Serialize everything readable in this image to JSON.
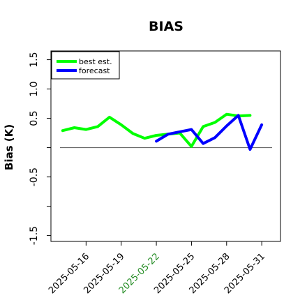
{
  "chart_data": {
    "type": "line",
    "title": "BIAS",
    "xlabel": "",
    "ylabel": "Bias (K)",
    "ylim": [
      -1.6,
      1.65
    ],
    "yticks": [
      -1.5,
      -1.0,
      -0.5,
      0.0,
      0.5,
      1.0,
      1.5
    ],
    "ytick_labels": [
      "-1.5",
      "",
      "-0.5",
      "",
      "0.5",
      "1.0",
      "1.5"
    ],
    "xtick_labels": [
      {
        "label": "2025-05-16",
        "index": 3,
        "color": "#000000"
      },
      {
        "label": "2025-05-19",
        "index": 6,
        "color": "#000000"
      },
      {
        "label": "2025-05-22",
        "index": 9,
        "color": "#228b22"
      },
      {
        "label": "2025-05-25",
        "index": 12,
        "color": "#000000"
      },
      {
        "label": "2025-05-28",
        "index": 15,
        "color": "#000000"
      },
      {
        "label": "2025-05-31",
        "index": 18,
        "color": "#000000"
      }
    ],
    "x_range": [
      0,
      19.6
    ],
    "zero_line": 0,
    "legend": {
      "position": "top-left",
      "entries": [
        "best est.",
        "forecast"
      ]
    },
    "series": [
      {
        "name": "best est.",
        "color": "#00ff00",
        "points": [
          [
            1,
            0.29
          ],
          [
            2,
            0.34
          ],
          [
            3,
            0.31
          ],
          [
            4,
            0.36
          ],
          [
            5,
            0.52
          ],
          [
            6,
            0.39
          ],
          [
            7,
            0.24
          ],
          [
            8,
            0.16
          ],
          [
            9,
            0.21
          ],
          [
            10,
            0.23
          ],
          [
            11,
            0.25
          ],
          [
            12,
            0.02
          ],
          [
            13,
            0.36
          ],
          [
            14,
            0.43
          ],
          [
            15,
            0.57
          ],
          [
            16,
            0.54
          ],
          [
            17,
            0.55
          ]
        ]
      },
      {
        "name": "forecast",
        "color": "#0000ff",
        "points": [
          [
            9,
            0.11
          ],
          [
            10,
            0.23
          ],
          [
            11,
            0.27
          ],
          [
            12,
            0.31
          ],
          [
            13,
            0.07
          ],
          [
            14,
            0.17
          ],
          [
            15,
            0.37
          ],
          [
            16,
            0.55
          ],
          [
            17,
            -0.03
          ],
          [
            18,
            0.39
          ]
        ]
      }
    ]
  }
}
